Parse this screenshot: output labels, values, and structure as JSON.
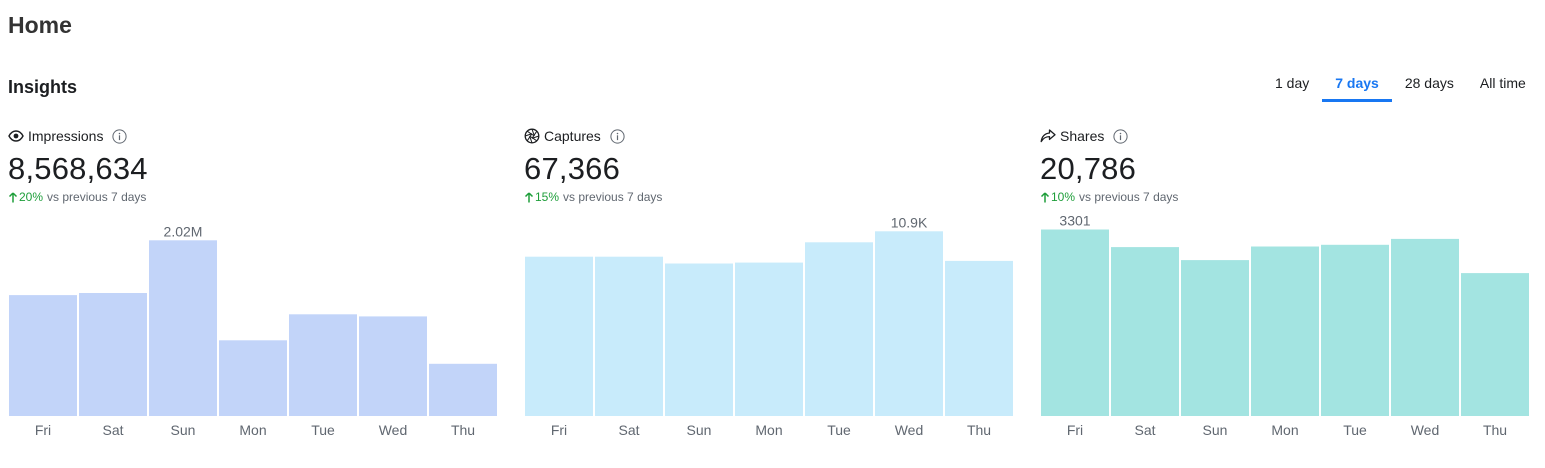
{
  "page": {
    "title": "Home"
  },
  "insights": {
    "title": "Insights",
    "tabs": [
      {
        "label": "1 day",
        "active": false
      },
      {
        "label": "7 days",
        "active": true
      },
      {
        "label": "28 days",
        "active": false
      },
      {
        "label": "All time",
        "active": false
      }
    ]
  },
  "chart_data": [
    {
      "type": "bar",
      "metric": "Impressions",
      "icon": "eye-icon",
      "total": "8,568,634",
      "change_pct": "20%",
      "change_text": "vs previous 7 days",
      "color": "#c2d4f9",
      "categories": [
        "Fri",
        "Sat",
        "Sun",
        "Mon",
        "Tue",
        "Wed",
        "Thu"
      ],
      "values": [
        1390000,
        1415000,
        2020000,
        870000,
        1170000,
        1145000,
        600000
      ],
      "peak_label": "2.02M",
      "peak_index": 2,
      "ylim": [
        0,
        2300000
      ]
    },
    {
      "type": "bar",
      "metric": "Captures",
      "icon": "aperture-icon",
      "total": "67,366",
      "change_pct": "15%",
      "change_text": "vs previous 7 days",
      "color": "#c8ebfb",
      "categories": [
        "Fri",
        "Sat",
        "Sun",
        "Mon",
        "Tue",
        "Wed",
        "Thu"
      ],
      "values": [
        9400,
        9400,
        9000,
        9050,
        10250,
        10900,
        9150
      ],
      "peak_label": "10.9K",
      "peak_index": 5,
      "ylim": [
        0,
        11800
      ]
    },
    {
      "type": "bar",
      "metric": "Shares",
      "icon": "share-icon",
      "total": "20,786",
      "change_pct": "10%",
      "change_text": "vs previous 7 days",
      "color": "#a3e4e1",
      "categories": [
        "Fri",
        "Sat",
        "Sun",
        "Mon",
        "Tue",
        "Wed",
        "Thu"
      ],
      "values": [
        3301,
        2990,
        2760,
        3000,
        3030,
        3135,
        2530
      ],
      "peak_label": "3301",
      "peak_index": 0,
      "ylim": [
        0,
        3540
      ]
    }
  ]
}
